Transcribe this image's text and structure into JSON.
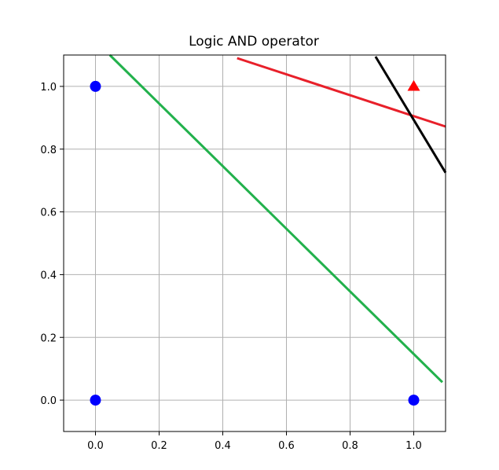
{
  "chart_data": {
    "type": "scatter",
    "title": "Logic AND operator",
    "xlabel": "",
    "ylabel": "",
    "xlim": [
      -0.1,
      1.1
    ],
    "ylim": [
      -0.1,
      1.1
    ],
    "xticks": [
      0.0,
      0.2,
      0.4,
      0.6,
      0.8,
      1.0
    ],
    "yticks": [
      0.0,
      0.2,
      0.4,
      0.6,
      0.8,
      1.0
    ],
    "xtick_labels": [
      "0.0",
      "0.2",
      "0.4",
      "0.6",
      "0.8",
      "1.0"
    ],
    "ytick_labels": [
      "0.0",
      "0.2",
      "0.4",
      "0.6",
      "0.8",
      "1.0"
    ],
    "grid": true,
    "points": [
      {
        "x": 0,
        "y": 1,
        "marker": "circle",
        "color": "#0000ff"
      },
      {
        "x": 0,
        "y": 0,
        "marker": "circle",
        "color": "#0000ff"
      },
      {
        "x": 1,
        "y": 0,
        "marker": "circle",
        "color": "#0000ff"
      },
      {
        "x": 1,
        "y": 1,
        "marker": "triangle",
        "color": "#ff0000"
      }
    ],
    "lines": [
      {
        "color": "#22b14c",
        "x": [
          0.045,
          1.09
        ],
        "y": [
          1.1,
          0.057
        ]
      },
      {
        "color": "#e8202a",
        "x": [
          0.445,
          1.1
        ],
        "y": [
          1.09,
          0.872
        ]
      },
      {
        "color": "#000000",
        "x": [
          0.88,
          1.1
        ],
        "y": [
          1.095,
          0.725
        ]
      }
    ]
  }
}
